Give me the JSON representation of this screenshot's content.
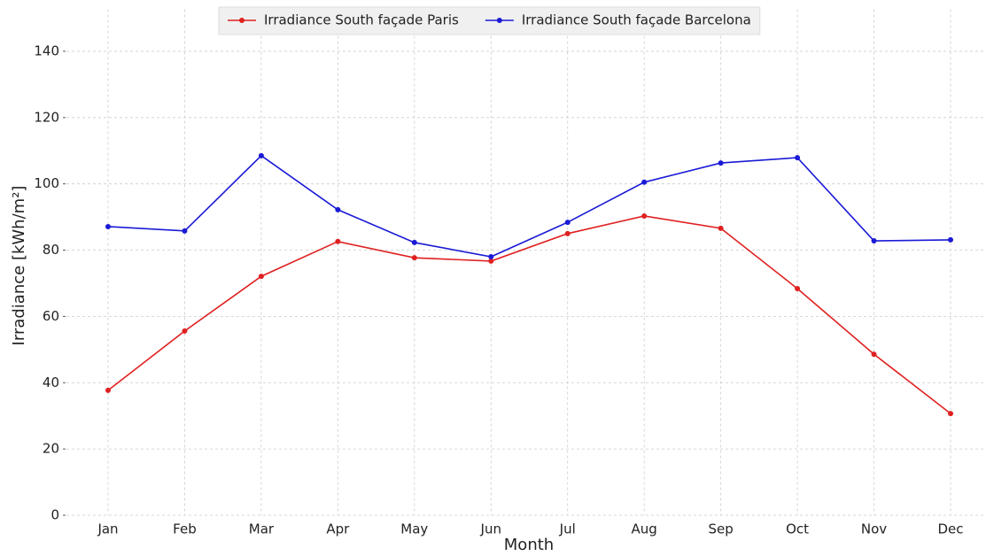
{
  "chart_data": {
    "type": "line",
    "x_label": "Month",
    "y_label": "Irradiance [kWh/m²]",
    "categories": [
      "Jan",
      "Feb",
      "Mar",
      "Apr",
      "May",
      "Jun",
      "Jul",
      "Aug",
      "Sep",
      "Oct",
      "Nov",
      "Dec"
    ],
    "series": [
      {
        "name": "Irradiance South façade Paris",
        "color": "#e02020",
        "values": [
          37.7,
          55.6,
          72.1,
          82.6,
          77.7,
          76.7,
          85.0,
          90.3,
          86.6,
          68.4,
          48.6,
          30.7
        ]
      },
      {
        "name": "Irradiance South façade Barcelona",
        "color": "#1a1ad6",
        "values": [
          87.1,
          85.8,
          108.5,
          92.2,
          82.3,
          78.0,
          88.4,
          100.5,
          106.3,
          107.9,
          82.8,
          83.1
        ]
      }
    ],
    "ylim": [
      0,
      150
    ],
    "yticks": [
      0,
      20,
      40,
      60,
      80,
      100,
      120,
      140
    ],
    "grid": true,
    "legend": "top"
  }
}
